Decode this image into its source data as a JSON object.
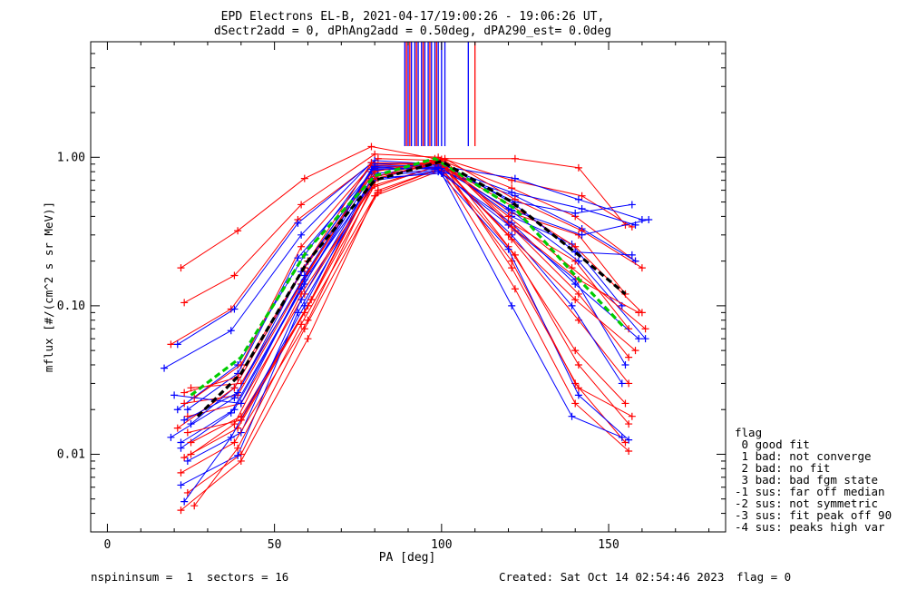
{
  "title_line1": "EPD Electrons EL-B, 2021-04-17/19:00:26 - 19:06:26 UT,",
  "title_line2": "dSectr2add = 0, dPhAng2add = 0.50deg, dPA290_est=   0.0deg",
  "footer": {
    "left": "nspininsum =  1  sectors = 16",
    "created": "Created: Sat Oct 14 02:54:46 2023",
    "flag": "flag = 0"
  },
  "legend": {
    "title": "flag",
    "items": [
      " 0 good fit",
      " 1 bad: not converge",
      " 2 bad: no fit",
      " 3 bad: bad fgm state",
      "-1 sus: far off median",
      "-2 sus: not symmetric",
      "-3 sus: fit peak off 90",
      "-4 sus: peaks high var"
    ]
  },
  "colors": {
    "red": "#ff0000",
    "blue": "#0000ff",
    "green": "#00cc00",
    "black": "#000000"
  },
  "chart_data": {
    "type": "line",
    "xlabel": "PA [deg]",
    "ylabel": "mflux [#/(cm^2 s sr MeV)]",
    "xlim": [
      -5,
      185
    ],
    "ylim": [
      0.003,
      6.0
    ],
    "yscale": "log",
    "x_ticks": [
      0,
      50,
      100,
      150
    ],
    "x_tick_labels": [
      "0",
      "50",
      "100",
      "150"
    ],
    "y_ticks": [
      0.01,
      0.1,
      1.0
    ],
    "y_tick_labels": [
      "0.01",
      "0.10",
      "1.00"
    ],
    "grid": false,
    "series": [
      {
        "color": "red",
        "x": [
          22,
          39,
          59,
          79,
          98,
          122,
          141,
          155
        ],
        "y": [
          0.18,
          0.32,
          0.72,
          1.18,
          0.98,
          0.98,
          0.85,
          0.35
        ]
      },
      {
        "color": "red",
        "x": [
          23,
          38,
          58,
          80,
          99,
          121,
          142,
          157
        ],
        "y": [
          0.105,
          0.16,
          0.48,
          1.05,
          1.0,
          0.7,
          0.55,
          0.34
        ]
      },
      {
        "color": "red",
        "x": [
          19,
          37,
          57,
          81,
          100,
          121,
          140,
          158
        ],
        "y": [
          0.055,
          0.095,
          0.38,
          0.98,
          0.95,
          0.62,
          0.4,
          0.2
        ]
      },
      {
        "color": "blue",
        "x": [
          17,
          37,
          58,
          79,
          99,
          122,
          141,
          160
        ],
        "y": [
          0.038,
          0.068,
          0.3,
          0.92,
          0.88,
          0.72,
          0.52,
          0.38
        ]
      },
      {
        "color": "blue",
        "x": [
          21,
          38,
          57,
          80,
          98,
          121,
          142,
          158
        ],
        "y": [
          0.055,
          0.095,
          0.36,
          0.95,
          0.9,
          0.58,
          0.45,
          0.35
        ]
      },
      {
        "color": "blue",
        "x": [
          21,
          39,
          59,
          79,
          100,
          122,
          140,
          157
        ],
        "y": [
          0.02,
          0.04,
          0.22,
          0.88,
          0.86,
          0.5,
          0.42,
          0.48
        ]
      },
      {
        "color": "red",
        "x": [
          25,
          40,
          60,
          80,
          100,
          121,
          141,
          155
        ],
        "y": [
          0.028,
          0.03,
          0.17,
          0.85,
          0.9,
          0.42,
          0.3,
          0.12
        ]
      },
      {
        "color": "red",
        "x": [
          23,
          39,
          58,
          79,
          101,
          120,
          140,
          156
        ],
        "y": [
          0.022,
          0.025,
          0.14,
          0.8,
          0.95,
          0.37,
          0.2,
          0.07
        ]
      },
      {
        "color": "blue",
        "x": [
          19,
          38,
          59,
          80,
          99,
          121,
          139,
          154
        ],
        "y": [
          0.013,
          0.024,
          0.16,
          0.9,
          0.92,
          0.4,
          0.26,
          0.1
        ]
      },
      {
        "color": "red",
        "x": [
          24,
          40,
          59,
          81,
          100,
          122,
          141,
          156
        ],
        "y": [
          0.018,
          0.022,
          0.12,
          0.75,
          0.97,
          0.32,
          0.12,
          0.045
        ]
      },
      {
        "color": "blue",
        "x": [
          22,
          37,
          58,
          80,
          98,
          120,
          140,
          155
        ],
        "y": [
          0.011,
          0.019,
          0.13,
          0.82,
          0.85,
          0.35,
          0.15,
          0.04
        ]
      },
      {
        "color": "red",
        "x": [
          25,
          40,
          60,
          79,
          99,
          121,
          141,
          156
        ],
        "y": [
          0.012,
          0.018,
          0.1,
          0.7,
          0.93,
          0.28,
          0.08,
          0.03
        ]
      },
      {
        "color": "red",
        "x": [
          23,
          39,
          59,
          80,
          101,
          120,
          140,
          155
        ],
        "y": [
          0.0095,
          0.015,
          0.09,
          0.65,
          0.9,
          0.25,
          0.05,
          0.022
        ]
      },
      {
        "color": "blue",
        "x": [
          24,
          40,
          58,
          80,
          100,
          121,
          139,
          154
        ],
        "y": [
          0.009,
          0.014,
          0.11,
          0.78,
          0.82,
          0.3,
          0.1,
          0.03
        ]
      },
      {
        "color": "red",
        "x": [
          22,
          38,
          60,
          79,
          99,
          122,
          141,
          156
        ],
        "y": [
          0.0075,
          0.012,
          0.08,
          0.62,
          0.88,
          0.22,
          0.04,
          0.016
        ]
      },
      {
        "color": "red",
        "x": [
          24,
          40,
          59,
          81,
          100,
          121,
          140,
          155
        ],
        "y": [
          0.0055,
          0.01,
          0.07,
          0.58,
          0.85,
          0.2,
          0.03,
          0.012
        ]
      },
      {
        "color": "blue",
        "x": [
          22,
          39,
          57,
          80,
          99,
          120,
          141,
          156
        ],
        "y": [
          0.0062,
          0.0098,
          0.09,
          0.7,
          0.8,
          0.24,
          0.025,
          0.0125
        ]
      },
      {
        "color": "red",
        "x": [
          22,
          40,
          60,
          80,
          100,
          122,
          140,
          156
        ],
        "y": [
          0.0042,
          0.009,
          0.06,
          0.55,
          0.82,
          0.13,
          0.022,
          0.0105
        ]
      },
      {
        "color": "red",
        "x": [
          26,
          39,
          58,
          81,
          101,
          121,
          141,
          157
        ],
        "y": [
          0.0045,
          0.011,
          0.075,
          0.6,
          0.86,
          0.18,
          0.028,
          0.018
        ]
      },
      {
        "color": "blue",
        "x": [
          23,
          37,
          59,
          79,
          100,
          121,
          139,
          154
        ],
        "y": [
          0.0048,
          0.013,
          0.1,
          0.72,
          0.78,
          0.1,
          0.018,
          0.013
        ]
      },
      {
        "color": "blue",
        "x": [
          25,
          38,
          60,
          80,
          98,
          122,
          142,
          158
        ],
        "y": [
          0.016,
          0.028,
          0.2,
          0.86,
          0.83,
          0.55,
          0.33,
          0.2
        ]
      },
      {
        "color": "red",
        "x": [
          26,
          40,
          58,
          79,
          99,
          121,
          140,
          160
        ],
        "y": [
          0.024,
          0.04,
          0.25,
          0.88,
          0.92,
          0.47,
          0.25,
          0.09
        ]
      },
      {
        "color": "blue",
        "x": [
          24,
          39,
          57,
          80,
          100,
          120,
          141,
          161
        ],
        "y": [
          0.02,
          0.035,
          0.21,
          0.84,
          0.84,
          0.45,
          0.2,
          0.06
        ]
      },
      {
        "color": "red",
        "x": [
          21,
          38,
          59,
          80,
          101,
          122,
          142,
          160
        ],
        "y": [
          0.015,
          0.028,
          0.18,
          0.8,
          0.98,
          0.52,
          0.32,
          0.18
        ]
      },
      {
        "color": "blue",
        "x": [
          20,
          40,
          59,
          81,
          99,
          121,
          140,
          159
        ],
        "y": [
          0.025,
          0.022,
          0.15,
          0.76,
          0.8,
          0.36,
          0.14,
          0.06
        ]
      },
      {
        "color": "red",
        "x": [
          23,
          39,
          60,
          79,
          100,
          120,
          139,
          161
        ],
        "y": [
          0.026,
          0.033,
          0.2,
          0.92,
          0.9,
          0.4,
          0.18,
          0.07
        ]
      },
      {
        "color": "blue",
        "x": [
          22,
          38,
          59,
          79,
          99,
          121,
          142,
          162
        ],
        "y": [
          0.012,
          0.02,
          0.14,
          0.83,
          0.86,
          0.44,
          0.3,
          0.38
        ]
      },
      {
        "color": "red",
        "x": [
          24,
          40,
          61,
          80,
          101,
          121,
          141,
          159
        ],
        "y": [
          0.014,
          0.017,
          0.11,
          0.74,
          0.92,
          0.34,
          0.15,
          0.09
        ]
      },
      {
        "color": "blue",
        "x": [
          23,
          39,
          58,
          80,
          101,
          122,
          140,
          157
        ],
        "y": [
          0.017,
          0.026,
          0.17,
          0.87,
          0.89,
          0.48,
          0.23,
          0.22
        ]
      },
      {
        "color": "red",
        "x": [
          25,
          38,
          58,
          81,
          99,
          120,
          140,
          158
        ],
        "y": [
          0.01,
          0.016,
          0.12,
          0.72,
          0.95,
          0.3,
          0.11,
          0.05
        ]
      },
      {
        "color": "green",
        "dashed": true,
        "thick": true,
        "x": [
          25,
          40,
          60,
          80,
          98,
          122,
          140,
          155
        ],
        "y": [
          0.025,
          0.045,
          0.24,
          0.75,
          0.98,
          0.45,
          0.16,
          0.07
        ]
      },
      {
        "color": "black",
        "dashed": true,
        "thick": true,
        "x": [
          27,
          40,
          60,
          80,
          100,
          121,
          141,
          155
        ],
        "y": [
          0.018,
          0.035,
          0.2,
          0.7,
          0.94,
          0.5,
          0.22,
          0.12
        ]
      }
    ],
    "vertical_lines": [
      {
        "color": "blue",
        "x": [
          89,
          90,
          91,
          92,
          93,
          94,
          95,
          96,
          97,
          98,
          99,
          100,
          101,
          108
        ]
      },
      {
        "color": "red",
        "x": [
          89.5,
          90.5,
          92.5,
          94.5,
          96.5,
          98.5,
          110
        ]
      }
    ]
  }
}
